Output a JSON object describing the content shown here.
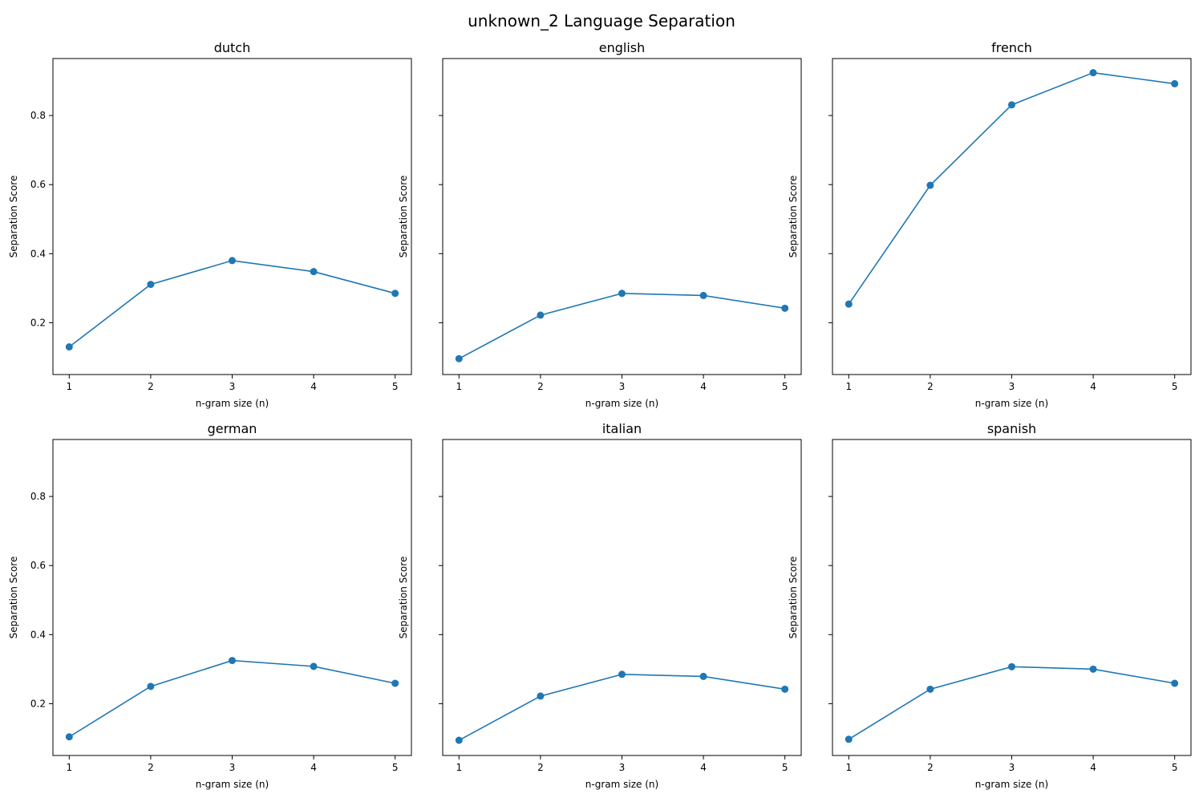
{
  "figure": {
    "title": "unknown_2 Language Separation"
  },
  "colors": {
    "series": "#1f77b4",
    "axes": "#000000",
    "background": "#ffffff"
  },
  "chart_data": [
    {
      "type": "line",
      "title": "dutch",
      "xlabel": "n-gram size (n)",
      "ylabel": "Separation Score",
      "x": [
        1,
        2,
        3,
        4,
        5
      ],
      "values": [
        0.13,
        0.311,
        0.38,
        0.348,
        0.285
      ],
      "xticks": [
        1,
        2,
        3,
        4,
        5
      ],
      "yticks": [
        0.2,
        0.4,
        0.6,
        0.8
      ],
      "ytick_labels_shown": true,
      "xlim": [
        0.8,
        5.2
      ],
      "ylim": [
        0.05,
        0.965
      ],
      "marker": "circle",
      "grid": false
    },
    {
      "type": "line",
      "title": "english",
      "xlabel": "n-gram size (n)",
      "ylabel": "Separation Score",
      "x": [
        1,
        2,
        3,
        4,
        5
      ],
      "values": [
        0.096,
        0.222,
        0.285,
        0.279,
        0.242
      ],
      "xticks": [
        1,
        2,
        3,
        4,
        5
      ],
      "yticks": [
        0.2,
        0.4,
        0.6,
        0.8
      ],
      "ytick_labels_shown": false,
      "xlim": [
        0.8,
        5.2
      ],
      "ylim": [
        0.05,
        0.965
      ],
      "marker": "circle",
      "grid": false
    },
    {
      "type": "line",
      "title": "french",
      "xlabel": "n-gram size (n)",
      "ylabel": "Separation Score",
      "x": [
        1,
        2,
        3,
        4,
        5
      ],
      "values": [
        0.254,
        0.598,
        0.831,
        0.924,
        0.892
      ],
      "xticks": [
        1,
        2,
        3,
        4,
        5
      ],
      "yticks": [
        0.2,
        0.4,
        0.6,
        0.8
      ],
      "ytick_labels_shown": false,
      "xlim": [
        0.8,
        5.2
      ],
      "ylim": [
        0.05,
        0.965
      ],
      "marker": "circle",
      "grid": false
    },
    {
      "type": "line",
      "title": "german",
      "xlabel": "n-gram size (n)",
      "ylabel": "Separation Score",
      "x": [
        1,
        2,
        3,
        4,
        5
      ],
      "values": [
        0.104,
        0.25,
        0.325,
        0.308,
        0.259
      ],
      "xticks": [
        1,
        2,
        3,
        4,
        5
      ],
      "yticks": [
        0.2,
        0.4,
        0.6,
        0.8
      ],
      "ytick_labels_shown": true,
      "xlim": [
        0.8,
        5.2
      ],
      "ylim": [
        0.05,
        0.965
      ],
      "marker": "circle",
      "grid": false
    },
    {
      "type": "line",
      "title": "italian",
      "xlabel": "n-gram size (n)",
      "ylabel": "Separation Score",
      "x": [
        1,
        2,
        3,
        4,
        5
      ],
      "values": [
        0.094,
        0.222,
        0.285,
        0.279,
        0.242
      ],
      "xticks": [
        1,
        2,
        3,
        4,
        5
      ],
      "yticks": [
        0.2,
        0.4,
        0.6,
        0.8
      ],
      "ytick_labels_shown": false,
      "xlim": [
        0.8,
        5.2
      ],
      "ylim": [
        0.05,
        0.965
      ],
      "marker": "circle",
      "grid": false
    },
    {
      "type": "line",
      "title": "spanish",
      "xlabel": "n-gram size (n)",
      "ylabel": "Separation Score",
      "x": [
        1,
        2,
        3,
        4,
        5
      ],
      "values": [
        0.097,
        0.242,
        0.307,
        0.3,
        0.259
      ],
      "xticks": [
        1,
        2,
        3,
        4,
        5
      ],
      "yticks": [
        0.2,
        0.4,
        0.6,
        0.8
      ],
      "ytick_labels_shown": false,
      "xlim": [
        0.8,
        5.2
      ],
      "ylim": [
        0.05,
        0.965
      ],
      "marker": "circle",
      "grid": false
    }
  ]
}
